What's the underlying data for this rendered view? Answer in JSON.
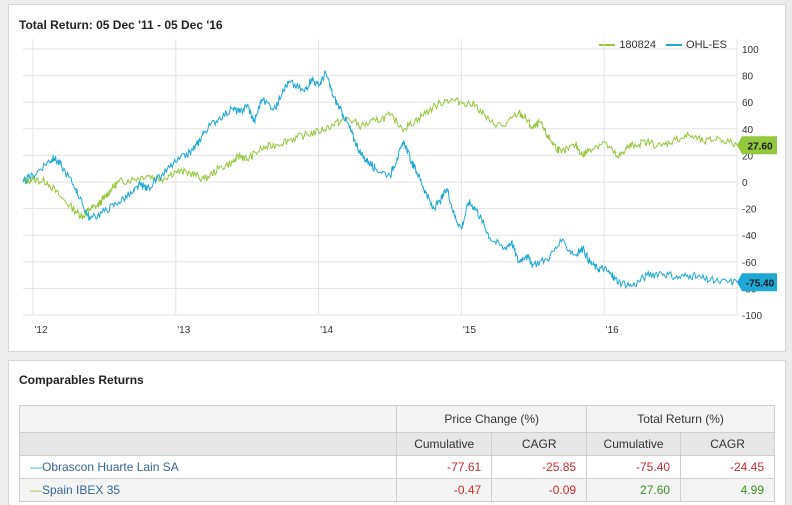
{
  "chart": {
    "title": "Total Return: 05 Dec '11 - 05 Dec '16",
    "legend": [
      "180824",
      "OHL-ES"
    ],
    "colors": {
      "green": "#94c83c",
      "blue": "#1ea8d6",
      "grid": "#e3e3e3"
    }
  },
  "chart_data": {
    "type": "line",
    "title": "Total Return: 05 Dec '11 - 05 Dec '16",
    "xlabel": "",
    "ylabel": "",
    "ylim": [
      -100,
      100
    ],
    "yticks": [
      100,
      80,
      60,
      40,
      20,
      0,
      -20,
      -40,
      -60,
      -80,
      -100
    ],
    "xticks": [
      "'12",
      "'13",
      "'14",
      "'15",
      "'16"
    ],
    "xlim": [
      2011.93,
      2016.93
    ],
    "grid": true,
    "legend_position": "top-right",
    "series": [
      {
        "name": "180824",
        "color": "#94c83c",
        "end_label": "27.60",
        "x": [
          2011.93,
          2012.0,
          2012.1,
          2012.2,
          2012.3,
          2012.35,
          2012.4,
          2012.45,
          2012.5,
          2012.55,
          2012.6,
          2012.7,
          2012.8,
          2012.9,
          2013.0,
          2013.1,
          2013.2,
          2013.3,
          2013.4,
          2013.45,
          2013.5,
          2013.6,
          2013.7,
          2013.8,
          2013.9,
          2014.0,
          2014.1,
          2014.2,
          2014.3,
          2014.4,
          2014.5,
          2014.6,
          2014.7,
          2014.8,
          2014.9,
          2015.0,
          2015.1,
          2015.2,
          2015.3,
          2015.4,
          2015.45,
          2015.5,
          2015.55,
          2015.6,
          2015.65,
          2015.7,
          2015.8,
          2015.85,
          2015.9,
          2016.0,
          2016.1,
          2016.15,
          2016.2,
          2016.3,
          2016.4,
          2016.5,
          2016.6,
          2016.7,
          2016.8,
          2016.93
        ],
        "values": [
          0,
          2,
          0,
          -12,
          -22,
          -26,
          -20,
          -18,
          -12,
          -5,
          0,
          2,
          5,
          2,
          8,
          7,
          2,
          10,
          15,
          20,
          17,
          25,
          28,
          32,
          35,
          38,
          43,
          48,
          42,
          46,
          50,
          40,
          48,
          56,
          62,
          60,
          58,
          45,
          42,
          52,
          48,
          40,
          45,
          35,
          28,
          22,
          28,
          20,
          25,
          30,
          18,
          25,
          28,
          30,
          27,
          32,
          35,
          30,
          33,
          27.6
        ]
      },
      {
        "name": "OHL-ES",
        "color": "#1ea8d6",
        "end_label": "-75.40",
        "x": [
          2011.93,
          2012.0,
          2012.1,
          2012.15,
          2012.2,
          2012.3,
          2012.35,
          2012.4,
          2012.5,
          2012.6,
          2012.7,
          2012.75,
          2012.8,
          2012.9,
          2013.0,
          2013.1,
          2013.15,
          2013.2,
          2013.3,
          2013.4,
          2013.45,
          2013.5,
          2013.55,
          2013.6,
          2013.7,
          2013.75,
          2013.8,
          2013.9,
          2013.95,
          2014.0,
          2014.05,
          2014.1,
          2014.15,
          2014.2,
          2014.25,
          2014.3,
          2014.35,
          2014.4,
          2014.5,
          2014.55,
          2014.6,
          2014.65,
          2014.7,
          2014.75,
          2014.8,
          2014.85,
          2014.9,
          2014.95,
          2015.0,
          2015.05,
          2015.1,
          2015.15,
          2015.2,
          2015.3,
          2015.35,
          2015.4,
          2015.45,
          2015.5,
          2015.6,
          2015.7,
          2015.8,
          2015.85,
          2015.9,
          2015.95,
          2016.0,
          2016.05,
          2016.1,
          2016.2,
          2016.3,
          2016.4,
          2016.5,
          2016.6,
          2016.7,
          2016.8,
          2016.93
        ],
        "values": [
          0,
          5,
          15,
          18,
          12,
          -5,
          -18,
          -28,
          -22,
          -15,
          -8,
          -2,
          -5,
          5,
          15,
          22,
          28,
          38,
          48,
          55,
          52,
          58,
          45,
          62,
          55,
          70,
          75,
          68,
          78,
          72,
          82,
          65,
          55,
          45,
          32,
          20,
          15,
          10,
          5,
          18,
          30,
          15,
          5,
          -8,
          -20,
          -15,
          -5,
          -25,
          -35,
          -15,
          -20,
          -30,
          -42,
          -50,
          -45,
          -60,
          -55,
          -62,
          -58,
          -45,
          -55,
          -50,
          -60,
          -65,
          -65,
          -70,
          -75,
          -78,
          -70,
          -68,
          -72,
          -70,
          -73,
          -75,
          -75.4
        ]
      }
    ]
  },
  "comparables": {
    "title": "Comparables Returns",
    "group_headers": [
      "Price Change (%)",
      "Total Return (%)"
    ],
    "sub_headers": [
      "Cumulative",
      "CAGR",
      "Cumulative",
      "CAGR"
    ],
    "rows": [
      {
        "name": "Obrascon Huarte Lain SA",
        "color": "#1ea8d6",
        "values": [
          "-77.61",
          "-25.85",
          "-75.40",
          "-24.45"
        ]
      },
      {
        "name": "Spain IBEX 35",
        "color": "#94c83c",
        "values": [
          "-0.47",
          "-0.09",
          "27.60",
          "4.99"
        ]
      }
    ]
  }
}
